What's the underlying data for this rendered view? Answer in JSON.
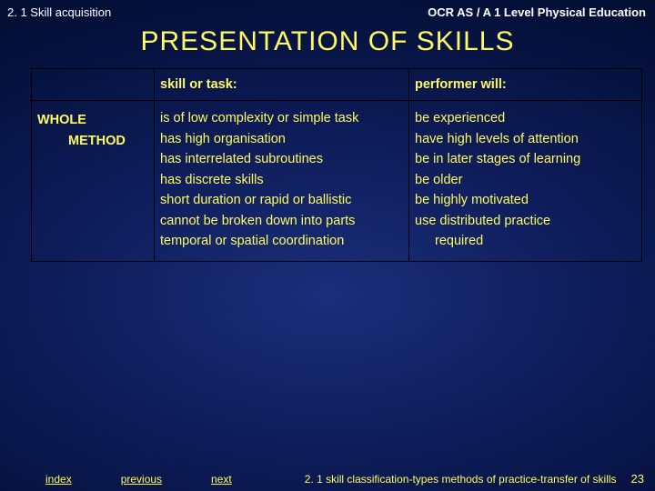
{
  "header": {
    "left": "2. 1 Skill acquisition",
    "right": "OCR AS / A 1 Level Physical Education"
  },
  "title": "PRESENTATION OF SKILLS",
  "table": {
    "headers": {
      "c0": "",
      "c1": "skill or task:",
      "c2": "performer will:"
    },
    "row": {
      "method_l1": "WHOLE",
      "method_l2": "METHOD",
      "skill": {
        "i0": "is of low complexity or simple task",
        "i1": "has high organisation",
        "i2": "has interrelated subroutines",
        "i3": "has discrete skills",
        "i4": "short duration or rapid or ballistic",
        "i5": "cannot be broken down into parts",
        "i6": "temporal or spatial coordination"
      },
      "performer": {
        "i0": "be experienced",
        "i1": "have high levels of attention",
        "i2": "be in later stages of learning",
        "i3": "be older",
        "i4": "be highly motivated",
        "i5": "use distributed practice",
        "i6": "required"
      }
    }
  },
  "footer": {
    "nav": {
      "index": "index",
      "previous": "previous",
      "next": "next"
    },
    "text": "2. 1 skill classification-types methods of practice-transfer of skills",
    "page": "23"
  },
  "colors": {
    "text_yellow": "#fffa60",
    "border": "#000000"
  }
}
